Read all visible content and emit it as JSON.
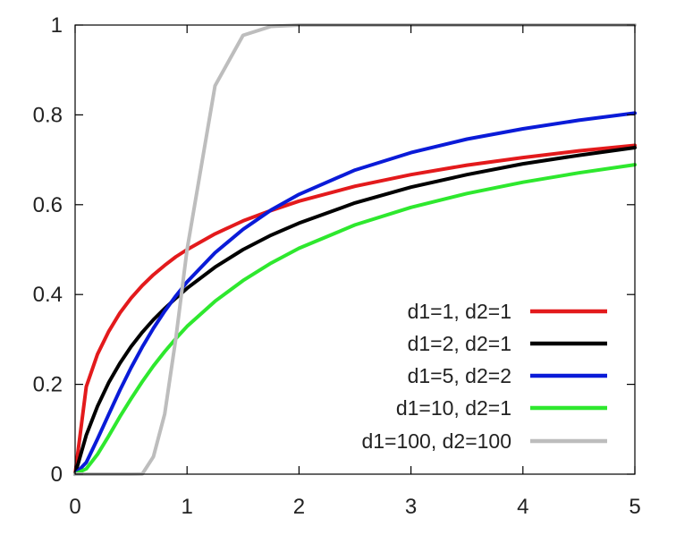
{
  "chart_data": {
    "type": "line",
    "title": "",
    "xlabel": "",
    "ylabel": "",
    "xlim": [
      0,
      5
    ],
    "ylim": [
      0,
      1
    ],
    "grid": false,
    "legend_position": "bottom-right",
    "x_ticks": [
      "0",
      "1",
      "2",
      "3",
      "4",
      "5"
    ],
    "y_ticks": [
      "0",
      "0.2",
      "0.4",
      "0.6",
      "0.8",
      "1"
    ],
    "x": [
      0,
      0.1,
      0.2,
      0.3,
      0.4,
      0.5,
      0.6,
      0.7,
      0.8,
      0.9,
      1,
      1.25,
      1.5,
      1.75,
      2,
      2.5,
      3,
      3.5,
      4,
      4.5,
      5
    ],
    "series": [
      {
        "name": "d1=1, d2=1",
        "color": "#e31a1c",
        "values": [
          0,
          0.195,
          0.267,
          0.318,
          0.359,
          0.392,
          0.42,
          0.444,
          0.465,
          0.484,
          0.5,
          0.535,
          0.564,
          0.587,
          0.608,
          0.641,
          0.667,
          0.688,
          0.705,
          0.72,
          0.732
        ]
      },
      {
        "name": "d1=2, d2=1",
        "color": "#000000",
        "values": [
          0,
          0.087,
          0.151,
          0.204,
          0.247,
          0.284,
          0.316,
          0.344,
          0.369,
          0.392,
          0.414,
          0.461,
          0.5,
          0.532,
          0.559,
          0.604,
          0.639,
          0.667,
          0.691,
          0.71,
          0.727
        ]
      },
      {
        "name": "d1=5, d2=2",
        "color": "#0a1bd8",
        "values": [
          0,
          0.026,
          0.078,
          0.133,
          0.187,
          0.237,
          0.283,
          0.325,
          0.363,
          0.397,
          0.428,
          0.493,
          0.545,
          0.588,
          0.623,
          0.677,
          0.716,
          0.746,
          0.769,
          0.788,
          0.804
        ]
      },
      {
        "name": "d1=10, d2=1",
        "color": "#2ee82e",
        "values": [
          0,
          0.012,
          0.044,
          0.085,
          0.128,
          0.168,
          0.206,
          0.241,
          0.273,
          0.302,
          0.329,
          0.385,
          0.431,
          0.47,
          0.503,
          0.555,
          0.594,
          0.625,
          0.65,
          0.671,
          0.689
        ]
      },
      {
        "name": "d1=100, d2=100",
        "color": "#bdbdbd",
        "values": [
          0,
          0,
          0,
          0,
          0,
          0,
          0.0003,
          0.039,
          0.134,
          0.303,
          0.5,
          0.865,
          0.977,
          0.997,
          1,
          1,
          1,
          1,
          1,
          1,
          1
        ]
      }
    ]
  }
}
